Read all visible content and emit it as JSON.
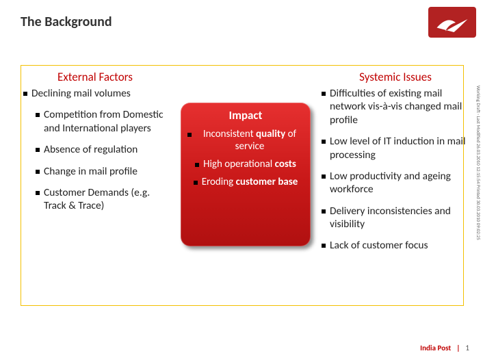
{
  "slide_title": "The Background",
  "brand": {
    "name": "India Post",
    "logo_bg": "#b22222"
  },
  "frame": {
    "border_color": "#f3c000"
  },
  "left": {
    "title": "External Factors",
    "title_color": "#c00000",
    "bullets": [
      "Declining mail volumes",
      "Competition from Domestic and International players",
      "Absence of regulation",
      "Change in mail profile",
      "Customer Demands (e.g. Track & Trace)"
    ]
  },
  "center": {
    "title": "Impact",
    "bg_gradient": [
      "#e63030",
      "#c81818",
      "#b01010"
    ],
    "text_color": "#ffffff",
    "bullets_html": [
      "Inconsistent <b>quality</b> of service",
      "High operational <b>costs</b>",
      "Eroding <b>customer base</b>"
    ]
  },
  "right": {
    "title": "Systemic Issues",
    "title_color": "#c00000",
    "bullets": [
      "Difficulties of existing mail network vis-à-vis changed mail profile",
      "Low level of IT induction in mail processing",
      "Low productivity and ageing workforce",
      "Delivery inconsistencies and visibility",
      "Lack of customer focus"
    ]
  },
  "footer": {
    "brand": "India Post",
    "sep": "|",
    "page": "1"
  },
  "side_text": "Working Draft · Last Modified 26.03.2010 12:15:54   Printed 30.03.2010 09:02:25"
}
